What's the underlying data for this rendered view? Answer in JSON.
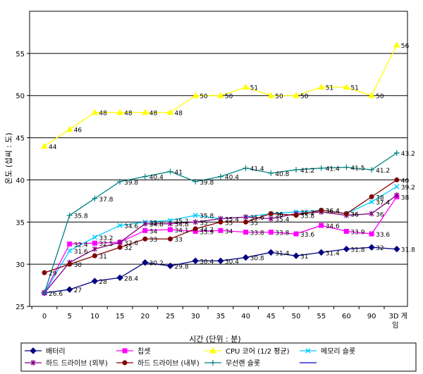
{
  "chart_data": {
    "type": "line",
    "xlabel": "시간 (단위 : 분)",
    "ylabel": "온도 (섭씨 : 도)",
    "ylim": [
      25,
      60
    ],
    "yticks": [
      25,
      30,
      35,
      40,
      45,
      50,
      55
    ],
    "grid": "horizontal",
    "legend_placement": "bottom",
    "categories": [
      "0",
      "5",
      "10",
      "15",
      "20",
      "25",
      "30",
      "35",
      "40",
      "45",
      "50",
      "55",
      "60",
      "90",
      "3D 게임"
    ],
    "series": [
      {
        "name": "배터리",
        "color": "#000080",
        "marker": "diamond",
        "values": [
          26.6,
          27,
          28,
          28.4,
          30.2,
          29.8,
          30.4,
          30.4,
          30.8,
          31.4,
          31,
          31.4,
          31.8,
          32,
          31.8
        ]
      },
      {
        "name": "칩셋",
        "color": "#ff00ff",
        "marker": "square",
        "values": [
          26.6,
          32.4,
          32.5,
          32.6,
          34,
          34.1,
          33.9,
          34,
          33.8,
          33.8,
          33.6,
          34.6,
          33.9,
          33.6,
          38
        ]
      },
      {
        "name": "CPU 코어 (1/2 평균)",
        "color": "#ffff00",
        "marker": "triangle",
        "values": [
          44,
          46,
          48,
          48,
          48,
          48,
          50,
          50,
          51,
          50,
          50,
          51,
          51,
          50,
          56
        ]
      },
      {
        "name": "메모리 슬롯",
        "color": "#00ccff",
        "marker": "x",
        "values": [
          26.6,
          31.6,
          33.2,
          34.6,
          35,
          35.2,
          35.8,
          35.4,
          35.6,
          36,
          36.2,
          36.4,
          36,
          37.4,
          39.2
        ]
      },
      {
        "name": "하드 드라이브 (외부)",
        "color": "#800080",
        "marker": "star",
        "values": [
          26.6,
          30.2,
          31.8,
          32.6,
          34.8,
          34.8,
          35,
          35.4,
          35.6,
          35.4,
          36,
          36.2,
          35.8,
          36,
          38.2
        ]
      },
      {
        "name": "하드 드라이브 (내부)",
        "color": "#800000",
        "marker": "circle",
        "values": [
          29,
          30,
          31,
          32,
          33,
          33,
          34.2,
          35,
          35,
          36,
          35.8,
          36.4,
          36,
          38,
          40
        ]
      },
      {
        "name": "무선랜 슬롯",
        "color": "#008080",
        "marker": "plus",
        "values": [
          26.6,
          35.8,
          37.8,
          39.8,
          40.4,
          41,
          39.8,
          40.4,
          41.4,
          40.8,
          41.2,
          41.4,
          41.5,
          41.2,
          43.2
        ]
      }
    ],
    "series_labels": [
      [
        "26.6",
        "27",
        "28",
        "28.4",
        "30.2",
        "29.8",
        "30.4",
        "30.4",
        "30.8",
        "31.4",
        "31",
        "31.4",
        "31.8",
        "32",
        "31.8"
      ],
      [
        "",
        "32.4",
        "32.5",
        "32.6",
        "34",
        "34.1",
        "33.9",
        "34",
        "33.8",
        "33.8",
        "33.6",
        "34.6",
        "33.9",
        "33.6",
        "38"
      ],
      [
        "44",
        "46",
        "48",
        "48",
        "48",
        "48",
        "50",
        "50",
        "51",
        "50",
        "50",
        "51",
        "51",
        "50",
        "56"
      ],
      [
        "",
        "31.6",
        "33.2",
        "34.6",
        "35",
        "35.2",
        "35.8",
        "35.4",
        "35.6",
        "36",
        "36.2",
        "36.4",
        "36",
        "37.4",
        "39.2"
      ],
      [
        "",
        "",
        "",
        "",
        "34.8",
        "34.8",
        "35",
        "",
        "",
        "35.4",
        "",
        "",
        "",
        "36",
        ""
      ],
      [
        "29",
        "30",
        "31",
        "32",
        "33",
        "33",
        "34.2",
        "35",
        "35",
        "36",
        "35.8",
        "36.4",
        "36",
        "38",
        "40"
      ],
      [
        "",
        "35.8",
        "37.8",
        "39.8",
        "40.4",
        "41",
        "39.8",
        "40.4",
        "41.4",
        "40.8",
        "41.2",
        "41.4",
        "41.5",
        "41.2",
        "43.2"
      ]
    ]
  }
}
